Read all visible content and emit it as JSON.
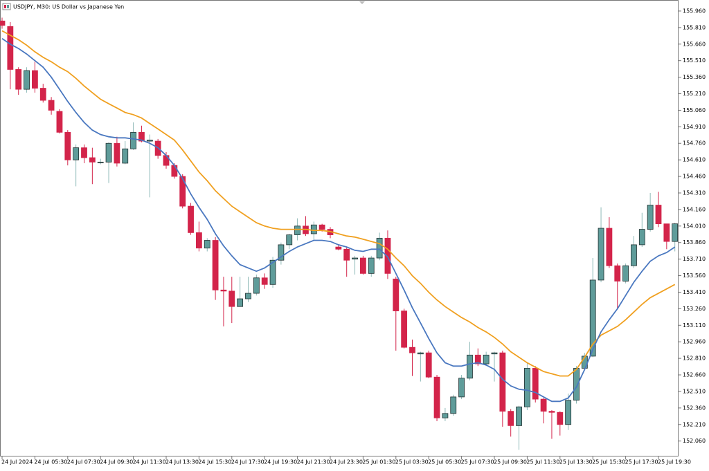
{
  "chart_data": {
    "type": "candlestick",
    "title": "USDJPY, M30:  US Dollar vs Japanese Yen",
    "categories": [
      "24 Jul 2024",
      null,
      null,
      null,
      "24 Jul 05:30",
      null,
      null,
      null,
      "24 Jul 07:30",
      null,
      null,
      null,
      "24 Jul 09:30",
      null,
      null,
      null,
      "24 Jul 11:30",
      null,
      null,
      null,
      "24 Jul 13:30",
      null,
      null,
      null,
      "24 Jul 15:30",
      null,
      null,
      null,
      "24 Jul 17:30",
      null,
      null,
      null,
      "24 Jul 19:30",
      null,
      null,
      null,
      "24 Jul 21:30",
      null,
      null,
      null,
      "24 Jul 23:30",
      null,
      null,
      null,
      "25 Jul 01:30",
      null,
      null,
      null,
      "25 Jul 03:30",
      null,
      null,
      null,
      "25 Jul 05:30",
      null,
      null,
      null,
      "25 Jul 07:30",
      null,
      null,
      null,
      "25 Jul 09:30",
      null,
      null,
      null,
      "25 Jul 11:30",
      null,
      null,
      null,
      "25 Jul 13:30",
      null,
      null,
      null,
      "25 Jul 15:30",
      null,
      null,
      null,
      "25 Jul 17:30",
      null,
      null,
      null,
      "25 Jul 19:30",
      null,
      null
    ],
    "open": [
      155.87,
      155.82,
      155.43,
      155.25,
      155.42,
      155.26,
      155.15,
      155.05,
      154.86,
      154.61,
      154.72,
      154.63,
      154.59,
      154.59,
      154.76,
      154.58,
      154.71,
      154.86,
      154.78,
      154.78,
      154.65,
      154.56,
      154.46,
      154.19,
      153.95,
      153.81,
      153.88,
      153.43,
      153.42,
      153.28,
      153.35,
      153.4,
      153.54,
      153.48,
      153.7,
      153.84,
      153.93,
      154.01,
      153.94,
      154.02,
      153.98,
      153.82,
      153.8,
      153.71,
      153.72,
      153.58,
      153.72,
      153.9,
      153.53,
      153.24,
      152.91,
      152.85,
      152.86,
      152.64,
      152.27,
      152.31,
      152.46,
      152.63,
      152.84,
      152.76,
      152.85,
      152.86,
      152.33,
      152.2,
      152.37,
      152.72,
      152.44,
      152.33,
      152.32,
      152.21,
      152.43,
      152.72,
      152.83,
      153.52,
      153.99,
      153.65,
      153.51,
      153.65,
      153.84,
      153.98,
      154.2,
      154.03,
      153.87
    ],
    "high": [
      155.9,
      155.86,
      155.45,
      155.45,
      155.5,
      155.3,
      155.18,
      155.07,
      154.88,
      154.75,
      154.75,
      154.72,
      154.62,
      154.77,
      154.82,
      154.78,
      154.95,
      154.92,
      154.84,
      154.8,
      154.68,
      154.58,
      154.48,
      154.22,
      154.05,
      153.9,
      153.91,
      153.55,
      153.55,
      153.55,
      153.55,
      153.57,
      153.58,
      153.73,
      153.86,
      153.94,
      154.08,
      154.1,
      154.05,
      154.03,
      154.0,
      153.84,
      153.82,
      153.74,
      153.74,
      153.74,
      153.95,
      153.97,
      153.55,
      153.26,
      152.98,
      152.87,
      152.88,
      152.66,
      152.36,
      152.48,
      152.66,
      152.96,
      152.9,
      152.87,
      152.87,
      152.88,
      152.35,
      152.38,
      152.77,
      152.74,
      152.45,
      152.34,
      152.33,
      152.49,
      152.74,
      152.86,
      153.72,
      154.18,
      154.09,
      153.67,
      153.67,
      153.92,
      154.13,
      154.31,
      154.32,
      154.03,
      154.04
    ],
    "low": [
      155.8,
      155.25,
      155.2,
      155.22,
      155.22,
      155.13,
      155.02,
      154.85,
      154.56,
      154.37,
      154.58,
      154.39,
      154.57,
      154.4,
      154.55,
      154.57,
      154.7,
      154.77,
      154.27,
      154.62,
      154.53,
      154.44,
      154.17,
      153.93,
      153.78,
      153.78,
      153.34,
      153.1,
      153.13,
      153.28,
      153.32,
      153.38,
      153.44,
      153.45,
      153.66,
      153.8,
      153.88,
      153.92,
      153.88,
      153.96,
      153.9,
      153.79,
      153.55,
      153.57,
      153.57,
      153.55,
      153.7,
      153.53,
      152.88,
      152.9,
      152.65,
      152.6,
      152.63,
      152.24,
      152.24,
      152.29,
      152.44,
      152.61,
      152.74,
      152.74,
      152.6,
      152.19,
      152.1,
      151.98,
      152.34,
      152.41,
      152.22,
      152.08,
      152.11,
      152.16,
      152.4,
      152.7,
      152.82,
      153.5,
      153.63,
      153.26,
      153.49,
      153.63,
      153.82,
      153.96,
      154.0,
      153.8,
      153.78
    ],
    "close": [
      155.83,
      155.43,
      155.25,
      155.42,
      155.26,
      155.15,
      155.06,
      154.86,
      154.61,
      154.72,
      154.63,
      154.59,
      154.59,
      154.76,
      154.58,
      154.71,
      154.86,
      154.78,
      154.79,
      154.65,
      154.56,
      154.46,
      154.19,
      153.95,
      153.81,
      153.88,
      153.43,
      153.42,
      153.28,
      153.35,
      153.4,
      153.54,
      153.48,
      153.7,
      153.84,
      153.93,
      154.01,
      153.94,
      154.02,
      153.98,
      153.93,
      153.8,
      153.7,
      153.72,
      153.58,
      153.72,
      153.9,
      153.58,
      153.24,
      152.91,
      152.86,
      152.86,
      152.64,
      152.27,
      152.31,
      152.46,
      152.63,
      152.84,
      152.76,
      152.84,
      152.86,
      152.33,
      152.2,
      152.37,
      152.72,
      152.44,
      152.33,
      152.32,
      152.21,
      152.43,
      152.72,
      152.83,
      153.52,
      153.99,
      153.65,
      153.51,
      153.65,
      153.84,
      153.98,
      154.2,
      154.03,
      153.87,
      154.03
    ],
    "up_color": "#5f9c9a",
    "down_color": "#d3244a",
    "lines": [
      {
        "color": "#f0a020",
        "values": [
          155.78,
          155.74,
          155.7,
          155.65,
          155.59,
          155.54,
          155.5,
          155.45,
          155.41,
          155.35,
          155.28,
          155.22,
          155.16,
          155.12,
          155.08,
          155.04,
          155.02,
          154.99,
          154.94,
          154.89,
          154.84,
          154.79,
          154.7,
          154.6,
          154.5,
          154.42,
          154.33,
          154.26,
          154.19,
          154.14,
          154.09,
          154.04,
          154.01,
          153.99,
          153.98,
          153.98,
          153.98,
          153.98,
          153.97,
          153.97,
          153.96,
          153.94,
          153.92,
          153.91,
          153.89,
          153.87,
          153.85,
          153.8,
          153.72,
          153.65,
          153.56,
          153.49,
          153.41,
          153.34,
          153.28,
          153.23,
          153.18,
          153.14,
          153.09,
          153.05,
          153.0,
          152.94,
          152.87,
          152.82,
          152.77,
          152.73,
          152.69,
          152.67,
          152.65,
          152.65,
          152.71,
          152.82,
          152.94,
          153.02,
          153.06,
          153.1,
          153.16,
          153.23,
          153.3,
          153.36,
          153.4,
          153.44,
          153.48
        ]
      },
      {
        "color": "#4a78c0",
        "values": [
          155.71,
          155.66,
          155.62,
          155.57,
          155.51,
          155.45,
          155.36,
          155.25,
          155.14,
          155.04,
          154.95,
          154.88,
          154.84,
          154.82,
          154.81,
          154.81,
          154.8,
          154.79,
          154.76,
          154.72,
          154.65,
          154.56,
          154.44,
          154.3,
          154.18,
          154.07,
          153.94,
          153.83,
          153.74,
          153.66,
          153.63,
          153.6,
          153.63,
          153.68,
          153.73,
          153.78,
          153.82,
          153.85,
          153.88,
          153.88,
          153.87,
          153.84,
          153.82,
          153.79,
          153.78,
          153.8,
          153.8,
          153.73,
          153.58,
          153.43,
          153.27,
          153.13,
          152.99,
          152.86,
          152.77,
          152.74,
          152.74,
          152.76,
          152.77,
          152.75,
          152.71,
          152.62,
          152.56,
          152.53,
          152.52,
          152.5,
          152.46,
          152.42,
          152.42,
          152.45,
          152.55,
          152.71,
          152.89,
          153.05,
          153.16,
          153.26,
          153.38,
          153.5,
          153.6,
          153.69,
          153.74,
          153.77,
          153.82
        ]
      }
    ],
    "ylim": [
      151.92,
      156.06
    ],
    "yticks": [
      {
        "value": 155.96,
        "label": "155.960"
      },
      {
        "value": 155.81,
        "label": "155.810"
      },
      {
        "value": 155.66,
        "label": "155.660"
      },
      {
        "value": 155.51,
        "label": "155.510"
      },
      {
        "value": 155.36,
        "label": "155.360"
      },
      {
        "value": 155.21,
        "label": "155.210"
      },
      {
        "value": 155.06,
        "label": "155.060"
      },
      {
        "value": 154.91,
        "label": "154.910"
      },
      {
        "value": 154.76,
        "label": "154.760"
      },
      {
        "value": 154.61,
        "label": "154.610"
      },
      {
        "value": 154.46,
        "label": "154.460"
      },
      {
        "value": 154.31,
        "label": "154.310"
      },
      {
        "value": 154.16,
        "label": "154.160"
      },
      {
        "value": 154.01,
        "label": "154.010"
      },
      {
        "value": 153.86,
        "label": "153.860"
      },
      {
        "value": 153.71,
        "label": "153.710"
      },
      {
        "value": 153.56,
        "label": "153.560"
      },
      {
        "value": 153.41,
        "label": "153.410"
      },
      {
        "value": 153.26,
        "label": "153.260"
      },
      {
        "value": 153.11,
        "label": "153.110"
      },
      {
        "value": 152.96,
        "label": "152.960"
      },
      {
        "value": 152.81,
        "label": "152.810"
      },
      {
        "value": 152.66,
        "label": "152.660"
      },
      {
        "value": 152.51,
        "label": "152.510"
      },
      {
        "value": 152.36,
        "label": "152.360"
      },
      {
        "value": 152.21,
        "label": "152.210"
      },
      {
        "value": 152.06,
        "label": "152.060"
      }
    ],
    "grid": false
  }
}
